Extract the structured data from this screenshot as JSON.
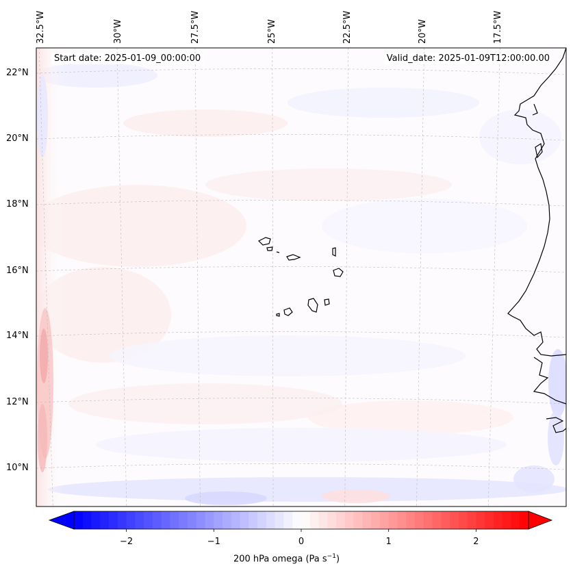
{
  "map": {
    "start_date": "Start date: 2025-01-09_00:00:00",
    "valid_date": "Valid_date: 2025-01-09T12:00:00.00",
    "lon_labels": [
      "32.5°W",
      "30°W",
      "27.5°W",
      "25°W",
      "22.5°W",
      "20°W",
      "17.5°W"
    ],
    "lat_labels": [
      "22°N",
      "20°N",
      "18°N",
      "16°N",
      "14°N",
      "12°N",
      "10°N"
    ],
    "features": [
      "Cape Verde islands",
      "West African coastline"
    ]
  },
  "colorbar": {
    "label_main": "200 hPa omega (Pa s",
    "label_exp": "−1",
    "label_end": ")",
    "ticks": [
      "−2",
      "−1",
      "0",
      "1",
      "2"
    ],
    "tick_values": [
      -2,
      -1,
      0,
      1,
      2
    ],
    "range": [
      -2.6,
      2.6
    ],
    "low_color": "#0000ff",
    "mid_color": "#ffffff",
    "high_color": "#ff0000"
  }
}
